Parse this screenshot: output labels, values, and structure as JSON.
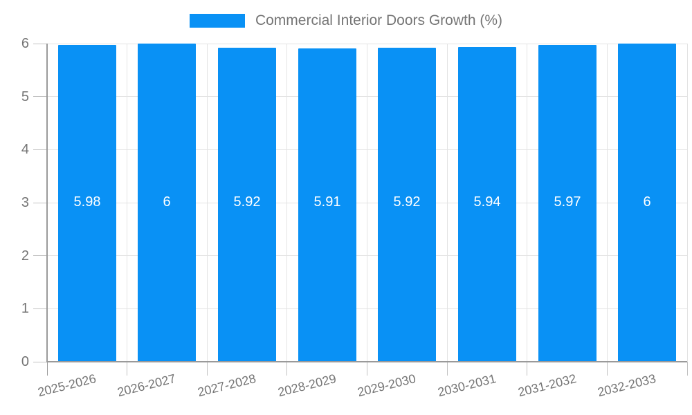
{
  "legend": {
    "label": "Commercial Interior Doors Growth (%)"
  },
  "chart_data": {
    "type": "bar",
    "title": "Commercial Interior Doors Growth (%)",
    "categories": [
      "2025-2026",
      "2026-2027",
      "2027-2028",
      "2028-2029",
      "2029-2030",
      "2030-2031",
      "2031-2032",
      "2032-2033"
    ],
    "series": [
      {
        "name": "Commercial Interior Doors Growth (%)",
        "values": [
          5.98,
          6,
          5.92,
          5.91,
          5.92,
          5.94,
          5.97,
          6
        ],
        "data_labels": [
          "5.98",
          "6",
          "5.92",
          "5.91",
          "5.92",
          "5.94",
          "5.97",
          "6"
        ]
      }
    ],
    "xlabel": "",
    "ylabel": "",
    "ylim": [
      0,
      6
    ],
    "yticks": [
      0,
      1,
      2,
      3,
      4,
      5,
      6
    ],
    "grid": true,
    "legend_position": "top"
  },
  "colors": {
    "bar": "#0991f5",
    "grid": "#e3e3e3",
    "tick": "#c2c2c2",
    "axis": "#9a9a9a",
    "text": "#757575",
    "value_label": "#ffffff",
    "background": "#ffffff"
  }
}
